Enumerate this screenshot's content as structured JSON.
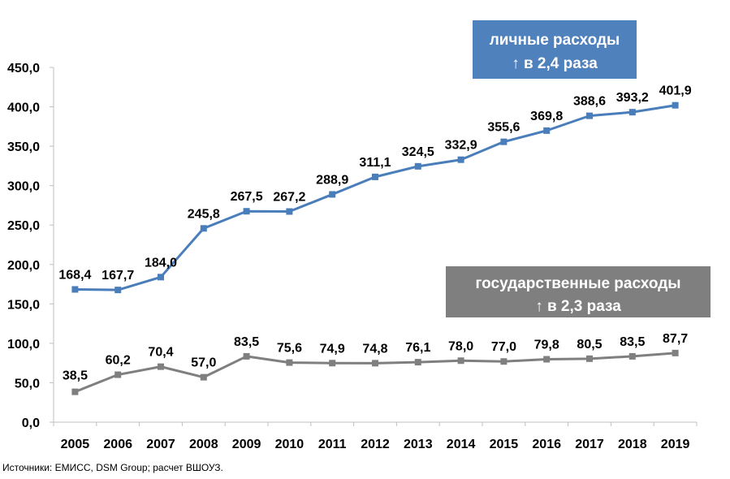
{
  "chart_data": {
    "type": "line",
    "x": [
      "2005",
      "2006",
      "2007",
      "2008",
      "2009",
      "2010",
      "2011",
      "2012",
      "2013",
      "2014",
      "2015",
      "2016",
      "2017",
      "2018",
      "2019"
    ],
    "ylim": [
      0,
      450
    ],
    "y_ticks": [
      "0,0",
      "50,0",
      "100,0",
      "150,0",
      "200,0",
      "250,0",
      "300,0",
      "350,0",
      "400,0",
      "450,0"
    ],
    "grid": false,
    "series": [
      {
        "name": "личные расходы",
        "color": "#4a7ebb",
        "values": [
          168.4,
          167.7,
          184.0,
          245.8,
          267.5,
          267.2,
          288.9,
          311.1,
          324.5,
          332.9,
          355.6,
          369.8,
          388.6,
          393.2,
          401.9
        ],
        "labels": [
          "168,4",
          "167,7",
          "184,0",
          "245,8",
          "267,5",
          "267,2",
          "288,9",
          "311,1",
          "324,5",
          "332,9",
          "355,6",
          "369,8",
          "388,6",
          "393,2",
          "401,9"
        ]
      },
      {
        "name": "государственные расходы",
        "color": "#7f7f7f",
        "values": [
          38.5,
          60.2,
          70.4,
          57.0,
          83.5,
          75.6,
          74.9,
          74.8,
          76.1,
          78.0,
          77.0,
          79.8,
          80.5,
          83.5,
          87.7
        ],
        "labels": [
          "38,5",
          "60,2",
          "70,4",
          "57,0",
          "83,5",
          "75,6",
          "74,9",
          "74,8",
          "76,1",
          "78,0",
          "77,0",
          "79,8",
          "80,5",
          "83,5",
          "87,7"
        ]
      }
    ],
    "annotations": [
      {
        "line1": "личные расходы",
        "line2": "↑ в 2,4 раза",
        "color": "#4f81bd"
      },
      {
        "line1": "государственные расходы",
        "line2": "↑ в 2,3 раза",
        "color": "#7f7f7f"
      }
    ]
  },
  "source_text": "Источники: ЕМИСС,  DSM Group; расчет ВШОУЗ."
}
